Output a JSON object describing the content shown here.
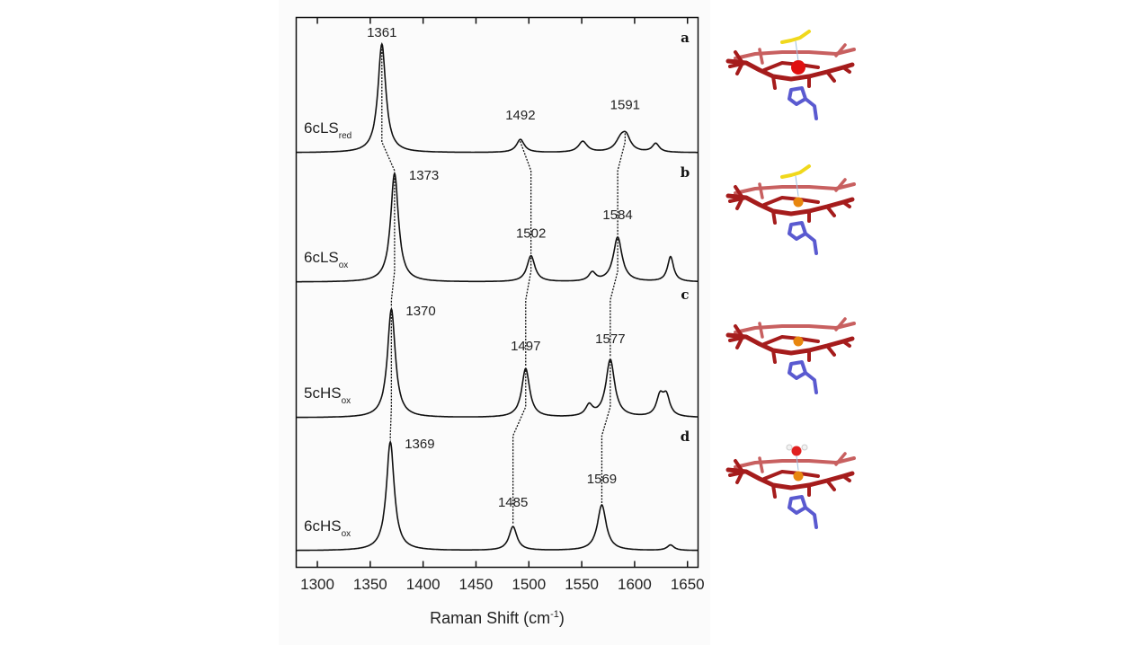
{
  "chart_data": {
    "type": "line",
    "title": "",
    "xlabel": "Raman Shift (cm",
    "xlabel_sup": "-1",
    "xlabel_end": ")",
    "ylabel": "",
    "xlim": [
      1280,
      1660
    ],
    "xticks": [
      1300,
      1350,
      1400,
      1450,
      1500,
      1550,
      1600,
      1650
    ],
    "tick_labels": [
      "1300",
      "1350",
      "1400",
      "1450",
      "1500",
      "1550",
      "1600",
      "1650"
    ],
    "grid": false,
    "panels": [
      {
        "letter": "a",
        "name": "6cLS",
        "sub": "red",
        "peaks": [
          {
            "x": 1361,
            "intensity": 1.0,
            "hwhm": 4.5
          },
          {
            "x": 1492,
            "intensity": 0.12,
            "hwhm": 4.5
          },
          {
            "x": 1551,
            "intensity": 0.1,
            "hwhm": 5
          },
          {
            "x": 1587,
            "intensity": 0.11,
            "hwhm": 6
          },
          {
            "x": 1592,
            "intensity": 0.12,
            "hwhm": 5
          },
          {
            "x": 1620,
            "intensity": 0.08,
            "hwhm": 4
          }
        ],
        "labels": [
          "1361",
          "1492",
          "1591"
        ]
      },
      {
        "letter": "b",
        "name": "6cLS",
        "sub": "ox",
        "peaks": [
          {
            "x": 1373,
            "intensity": 1.0,
            "hwhm": 4.5
          },
          {
            "x": 1502,
            "intensity": 0.24,
            "hwhm": 4.5
          },
          {
            "x": 1560,
            "intensity": 0.08,
            "hwhm": 4
          },
          {
            "x": 1584,
            "intensity": 0.41,
            "hwhm": 5
          },
          {
            "x": 1634,
            "intensity": 0.23,
            "hwhm": 3.5
          }
        ],
        "labels": [
          "1373",
          "1502",
          "1584"
        ]
      },
      {
        "letter": "c",
        "name": "5cHS",
        "sub": "ox",
        "peaks": [
          {
            "x": 1370,
            "intensity": 1.0,
            "hwhm": 4.5
          },
          {
            "x": 1497,
            "intensity": 0.45,
            "hwhm": 4.5
          },
          {
            "x": 1557,
            "intensity": 0.1,
            "hwhm": 4
          },
          {
            "x": 1577,
            "intensity": 0.53,
            "hwhm": 5
          },
          {
            "x": 1624,
            "intensity": 0.18,
            "hwhm": 4
          },
          {
            "x": 1630,
            "intensity": 0.18,
            "hwhm": 4
          }
        ],
        "labels": [
          "1370",
          "1497",
          "1577"
        ]
      },
      {
        "letter": "d",
        "name": "6cHS",
        "sub": "ox",
        "peaks": [
          {
            "x": 1369,
            "intensity": 1.0,
            "hwhm": 4.5
          },
          {
            "x": 1485,
            "intensity": 0.22,
            "hwhm": 4.5
          },
          {
            "x": 1569,
            "intensity": 0.42,
            "hwhm": 5
          },
          {
            "x": 1634,
            "intensity": 0.05,
            "hwhm": 4
          }
        ],
        "labels": [
          "1369",
          "1485",
          "1569"
        ]
      }
    ],
    "correlations": [
      [
        1361,
        1373,
        1370,
        1369
      ],
      [
        1492,
        1502,
        1497,
        1485
      ],
      [
        1591,
        1584,
        1577,
        1569
      ]
    ]
  },
  "colors": {
    "line": "#111111",
    "porphyrin": "#a51c1c",
    "porphyrin_light": "#c86060",
    "iron_red": "#e01010",
    "iron_orange": "#e8870f",
    "sulfur_ligand": "#f0d81c",
    "histidine": "#5a5ad0",
    "water_o": "#e02020",
    "water_h": "#f2f2f2"
  },
  "structures": [
    {
      "panel": "a",
      "ligand": "methionine",
      "iron": "iron_red"
    },
    {
      "panel": "b",
      "ligand": "methionine",
      "iron": "iron_orange"
    },
    {
      "panel": "c",
      "ligand": "none",
      "iron": "iron_orange"
    },
    {
      "panel": "d",
      "ligand": "water",
      "iron": "iron_orange"
    }
  ]
}
